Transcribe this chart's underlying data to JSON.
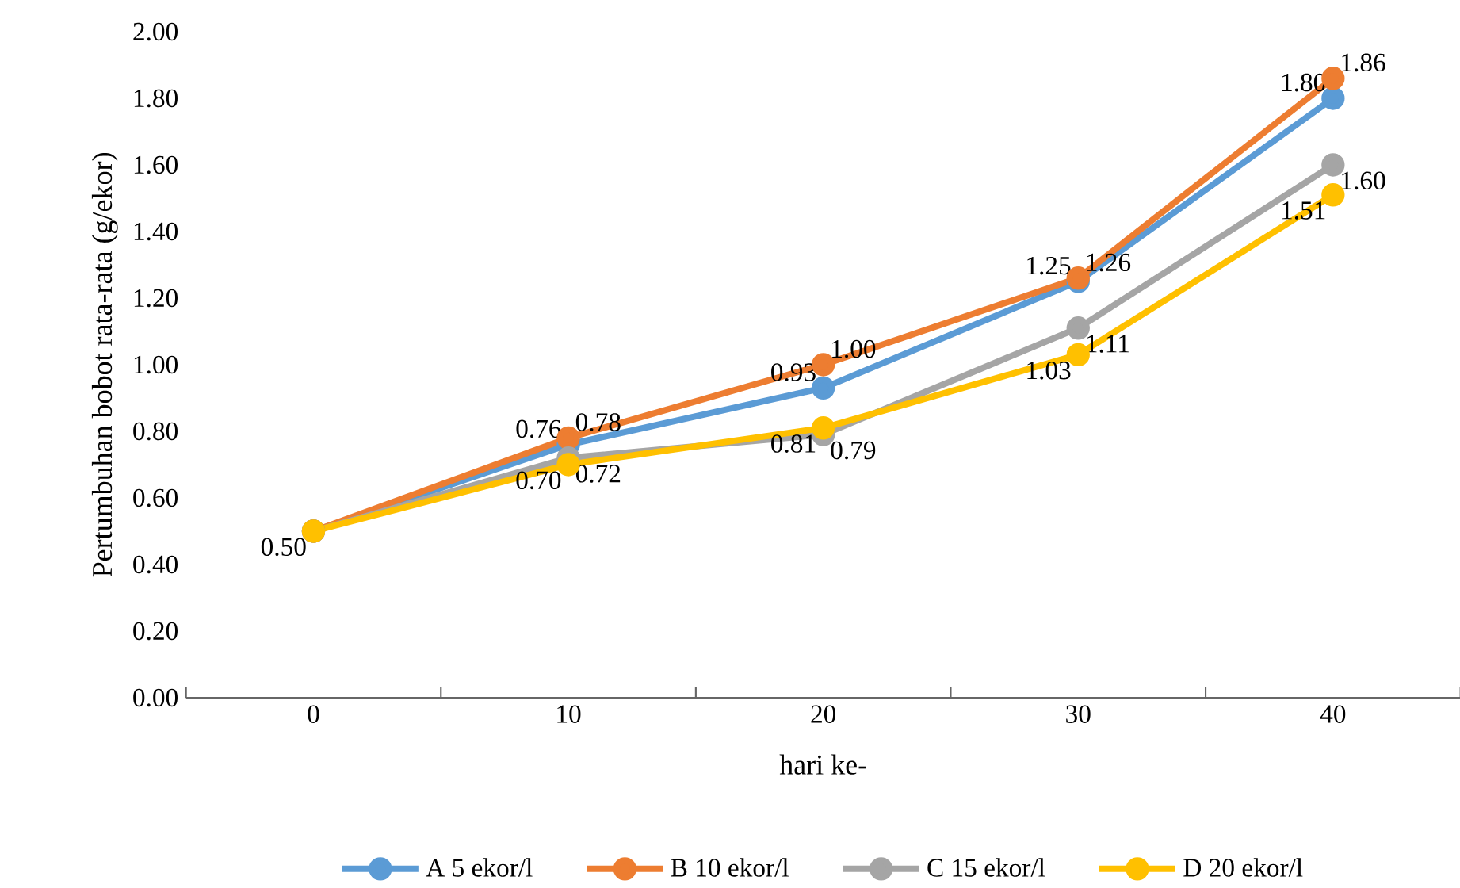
{
  "chart_data": {
    "type": "line",
    "xlabel": "hari ke-",
    "ylabel": "Pertumbuhan bobot rata-rata (g/ekor)",
    "categories": [
      "0",
      "10",
      "20",
      "30",
      "40"
    ],
    "series": [
      {
        "name": "A 5 ekor/l",
        "color": "#5b9bd5",
        "values": [
          0.5,
          0.76,
          0.93,
          1.25,
          1.8
        ],
        "value_labels": [
          null,
          "0.76",
          "0.93",
          "1.25",
          "1.80"
        ]
      },
      {
        "name": "B 10 ekor/l",
        "color": "#ed7d31",
        "values": [
          0.5,
          0.78,
          1.0,
          1.26,
          1.86
        ],
        "value_labels": [
          null,
          "0.78",
          "1.00",
          "1.26",
          "1.86"
        ]
      },
      {
        "name": "C 15 ekor/l",
        "color": "#a5a5a5",
        "values": [
          0.5,
          0.72,
          0.79,
          1.11,
          1.6
        ],
        "value_labels": [
          null,
          "0.72",
          "0.79",
          "1.11",
          "1.60"
        ]
      },
      {
        "name": "D 20 ekor/l",
        "color": "#ffc000",
        "values": [
          0.5,
          0.7,
          0.81,
          1.03,
          1.51
        ],
        "value_labels": [
          "0.50",
          "0.70",
          "0.81",
          "1.03",
          "1.51"
        ]
      }
    ],
    "ylim": [
      0,
      2
    ],
    "yticks": [
      {
        "value": 0,
        "label": "0.00"
      },
      {
        "value": 0.2,
        "label": "0.20"
      },
      {
        "value": 0.4,
        "label": "0.40"
      },
      {
        "value": 0.6,
        "label": "0.60"
      },
      {
        "value": 0.8,
        "label": "0.80"
      },
      {
        "value": 1.0,
        "label": "1.00"
      },
      {
        "value": 1.2,
        "label": "1.20"
      },
      {
        "value": 1.4,
        "label": "1.40"
      },
      {
        "value": 1.6,
        "label": "1.60"
      },
      {
        "value": 1.8,
        "label": "1.80"
      },
      {
        "value": 2.0,
        "label": "2.00"
      }
    ],
    "grid": false,
    "legend": "bottom",
    "marker": "circle",
    "line_style": "solid"
  }
}
